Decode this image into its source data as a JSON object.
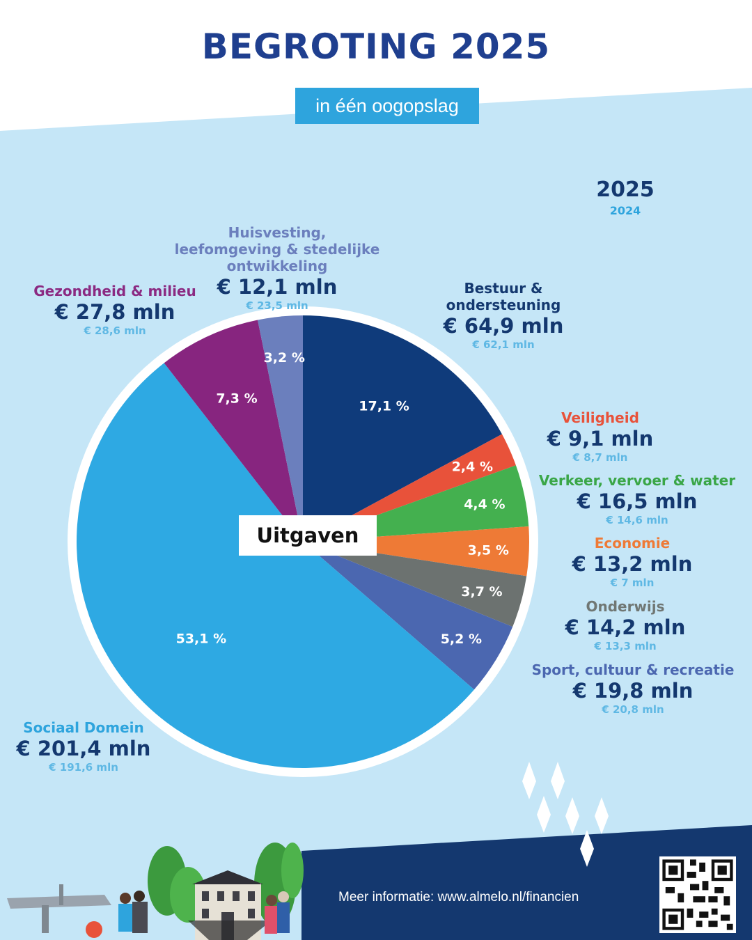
{
  "title": "BEGROTING 2025",
  "subtitle": "in één oogopslag",
  "legend": {
    "current_year": "2025",
    "previous_year": "2024"
  },
  "center_label": "Uitgaven",
  "footer": {
    "info": "Meer informatie: www.almelo.nl/financien"
  },
  "colors": {
    "background": "#c5e6f7",
    "title": "#1f3f8f",
    "footer": "#14386f"
  },
  "chart_data": {
    "type": "pie",
    "title": "Uitgaven",
    "series_years": [
      "2025",
      "2024"
    ],
    "slices": [
      {
        "category": "Bestuur & ondersteuning",
        "percent_label": "17,1 %",
        "percent": 17.1,
        "amount": "€ 64,9 mln",
        "amount_prev": "€ 62,1 mln",
        "value": 64.9,
        "value_prev": 62.1,
        "color": "#0f3b7b",
        "label_color": "#14386f"
      },
      {
        "category": "Veiligheid",
        "percent_label": "2,4 %",
        "percent": 2.4,
        "amount": "€ 9,1 mln",
        "amount_prev": "€ 8,7 mln",
        "value": 9.1,
        "value_prev": 8.7,
        "color": "#e8523a",
        "label_color": "#e8523a"
      },
      {
        "category": "Verkeer, vervoer & water",
        "percent_label": "4,4 %",
        "percent": 4.4,
        "amount": "€ 16,5 mln",
        "amount_prev": "€ 14,6 mln",
        "value": 16.5,
        "value_prev": 14.6,
        "color": "#44b04f",
        "label_color": "#3aa647"
      },
      {
        "category": "Economie",
        "percent_label": "3,5 %",
        "percent": 3.5,
        "amount": "€ 13,2 mln",
        "amount_prev": "€ 7 mln",
        "value": 13.2,
        "value_prev": 7,
        "color": "#ee7a36",
        "label_color": "#ee7a36"
      },
      {
        "category": "Onderwijs",
        "percent_label": "3,7 %",
        "percent": 3.7,
        "amount": "€ 14,2 mln",
        "amount_prev": "€ 13,3 mln",
        "value": 14.2,
        "value_prev": 13.3,
        "color": "#6c7270",
        "label_color": "#707774"
      },
      {
        "category": "Sport, cultuur & recreatie",
        "percent_label": "5,2 %",
        "percent": 5.2,
        "amount": "€ 19,8 mln",
        "amount_prev": "€ 20,8 mln",
        "value": 19.8,
        "value_prev": 20.8,
        "color": "#4b67b0",
        "label_color": "#4b67b0"
      },
      {
        "category": "Sociaal Domein",
        "percent_label": "53,1 %",
        "percent": 53.1,
        "amount": "€ 201,4 mln",
        "amount_prev": "€ 191,6 mln",
        "value": 201.4,
        "value_prev": 191.6,
        "color": "#2ea9e3",
        "label_color": "#2ea4dd"
      },
      {
        "category": "Gezondheid & milieu",
        "percent_label": "7,3 %",
        "percent": 7.3,
        "amount": "€ 27,8 mln",
        "amount_prev": "€ 28,6 mln",
        "value": 27.8,
        "value_prev": 28.6,
        "color": "#87257f",
        "label_color": "#8b2a82"
      },
      {
        "category": "Huisvesting, leefomgeving & stedelijke ontwikkeling",
        "percent_label": "3,2 %",
        "percent": 3.2,
        "amount": "€ 12,1 mln",
        "amount_prev": "€ 23,5 mln",
        "value": 12.1,
        "value_prev": 23.5,
        "color": "#6b7fbd",
        "label_color": "#6b7fbd"
      }
    ]
  }
}
